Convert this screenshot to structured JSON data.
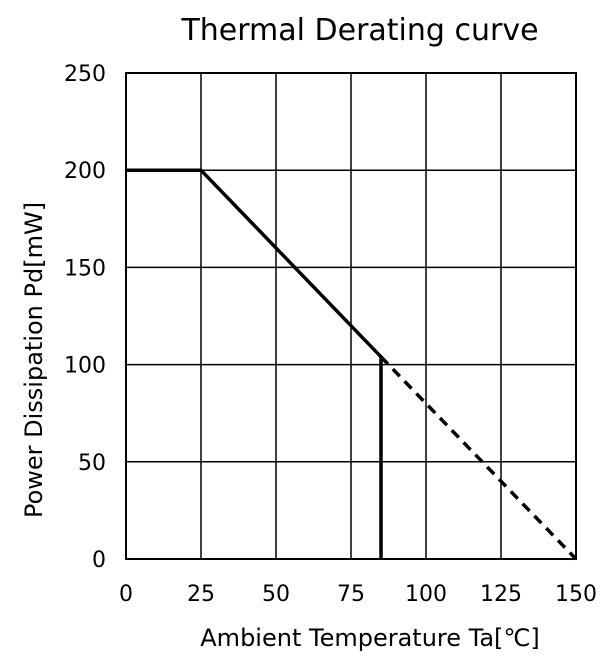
{
  "chart_data": {
    "type": "line",
    "title": "Thermal Derating curve",
    "xlabel": "Ambient Temperature Ta[℃]",
    "ylabel": "Power Dissipation Pd[mW]",
    "xlim": [
      0,
      150
    ],
    "ylim": [
      0,
      250
    ],
    "xticks": [
      0,
      25,
      50,
      75,
      100,
      125,
      150
    ],
    "yticks": [
      0,
      50,
      100,
      150,
      200,
      250
    ],
    "xtick_labels": [
      "0",
      "25",
      "50",
      "75",
      "100",
      "125",
      "150"
    ],
    "ytick_labels": [
      "0",
      "50",
      "100",
      "150",
      "200",
      "250"
    ],
    "grid": true,
    "legend": "none",
    "series": [
      {
        "style": "solid",
        "color": "#000000",
        "points": [
          [
            0,
            200
          ],
          [
            25,
            200
          ],
          [
            85,
            104
          ],
          [
            85,
            0
          ]
        ]
      },
      {
        "style": "dashed",
        "color": "#000000",
        "points": [
          [
            0,
            200
          ],
          [
            25,
            200
          ]
        ]
      },
      {
        "style": "dashed",
        "color": "#000000",
        "points": [
          [
            85,
            104
          ],
          [
            150,
            0
          ]
        ]
      }
    ]
  }
}
